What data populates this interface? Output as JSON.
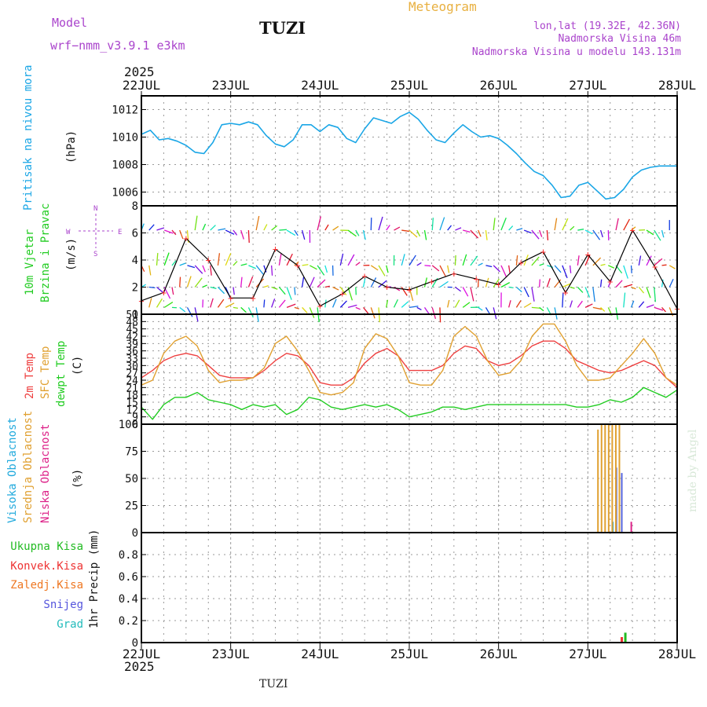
{
  "header": {
    "model_label": "Model",
    "model_name": "wrf−nmm_v3.9.1  e3km",
    "station": "TUZI",
    "meteogram_label": "Meteogram",
    "lonlat": "lon,lat (19.32E, 42.36N)",
    "elevation": "Nadmorska Visina 46m",
    "model_elevation": "Nadmorska Visina u modelu 143.131m"
  },
  "footer": {
    "station": "TUZI",
    "credit": "made by Angel"
  },
  "colors": {
    "pressure": "#1aa6e6",
    "wind_label": "#22cc22",
    "speed_red": "#ff3030",
    "temp2m": "#ee4040",
    "sfc": "#e0a030",
    "dewpt": "#22cc22",
    "high_cloud": "#22aadd",
    "mid_cloud": "#e0a030",
    "low_cloud": "#dd2288",
    "total_precip": "#22bb22",
    "conv_precip": "#ee3333",
    "frozen_precip": "#ee7722",
    "snow": "#5555dd",
    "graupel": "#22bbbb",
    "compass": "#aa44cc",
    "header_purple": "#aa44cc"
  },
  "chart_data": [
    {
      "type": "line",
      "panel": "pressure",
      "ylabel_lines": [
        "Pritisak na nivou mora",
        "(hPa)"
      ],
      "ylim": [
        1005,
        1013
      ],
      "yticks": [
        1006,
        1008,
        1010,
        1012
      ],
      "x_days": [
        0,
        0.1,
        0.2,
        0.3,
        0.4,
        0.5,
        0.6,
        0.7,
        0.8,
        0.9,
        1,
        1.1,
        1.2,
        1.3,
        1.4,
        1.5,
        1.6,
        1.7,
        1.8,
        1.9,
        2,
        2.1,
        2.2,
        2.3,
        2.4,
        2.5,
        2.6,
        2.7,
        2.8,
        2.9,
        3,
        3.1,
        3.2,
        3.3,
        3.4,
        3.5,
        3.6,
        3.7,
        3.8,
        3.9,
        4,
        4.1,
        4.2,
        4.3,
        4.4,
        4.5,
        4.6,
        4.7,
        4.8,
        4.9,
        5,
        5.1,
        5.2,
        5.3,
        5.4,
        5.5,
        5.6,
        5.7,
        5.8,
        5.9,
        6
      ],
      "values": [
        1010.2,
        1010.5,
        1009.8,
        1009.9,
        1009.7,
        1009.4,
        1008.9,
        1008.8,
        1009.6,
        1010.9,
        1011.0,
        1010.9,
        1011.1,
        1010.9,
        1010.1,
        1009.5,
        1009.3,
        1009.8,
        1010.9,
        1010.9,
        1010.4,
        1010.9,
        1010.7,
        1009.9,
        1009.6,
        1010.6,
        1011.4,
        1011.2,
        1011.0,
        1011.5,
        1011.8,
        1011.3,
        1010.5,
        1009.8,
        1009.6,
        1010.3,
        1010.9,
        1010.4,
        1010.0,
        1010.1,
        1009.9,
        1009.4,
        1008.8,
        1008.1,
        1007.5,
        1007.2,
        1006.5,
        1005.6,
        1005.7,
        1006.5,
        1006.7,
        1006.1,
        1005.5,
        1005.6,
        1006.2,
        1007.1,
        1007.6,
        1007.8,
        1007.9,
        1007.9,
        1007.9
      ]
    },
    {
      "type": "line",
      "panel": "wind",
      "ylabel_lines": [
        "10m Vjetar",
        "Brzina i Pravac",
        "(m/s)"
      ],
      "compass_labels": [
        "W",
        "E",
        "N",
        "S"
      ],
      "ylim": [
        0,
        8
      ],
      "yticks": [
        0,
        2,
        4,
        6,
        8
      ],
      "x_days": [
        0,
        0.25,
        0.5,
        0.75,
        1,
        1.25,
        1.5,
        1.75,
        2,
        2.25,
        2.5,
        2.75,
        3,
        3.25,
        3.5,
        3.75,
        4,
        4.25,
        4.5,
        4.75,
        5,
        5.25,
        5.5,
        5.75,
        6
      ],
      "values": [
        1.0,
        1.6,
        5.6,
        4.0,
        1.2,
        1.2,
        4.8,
        3.6,
        0.6,
        1.5,
        2.8,
        2.0,
        1.8,
        2.4,
        3.0,
        2.6,
        2.2,
        3.8,
        4.6,
        1.6,
        4.4,
        2.4,
        6.2,
        3.5,
        0.4
      ],
      "arrow_rows": [
        {
          "level": 0.5,
          "label": "row1"
        },
        {
          "level": 2.0,
          "label": "row2"
        },
        {
          "level": 3.6,
          "label": "row3"
        },
        {
          "level": 6.2,
          "label": "row4"
        }
      ]
    },
    {
      "type": "line",
      "panel": "temperature",
      "ylabel_lines": [
        "2m Temp",
        "SFC Temp",
        "dewpt Temp",
        "(C)"
      ],
      "ylim": [
        6,
        51
      ],
      "yticks": [
        6,
        9,
        12,
        15,
        18,
        21,
        24,
        27,
        30,
        33,
        36,
        39,
        42,
        45,
        48,
        51
      ],
      "x_days": [
        0,
        0.125,
        0.25,
        0.375,
        0.5,
        0.625,
        0.75,
        0.875,
        1,
        1.125,
        1.25,
        1.375,
        1.5,
        1.625,
        1.75,
        1.875,
        2,
        2.125,
        2.25,
        2.375,
        2.5,
        2.625,
        2.75,
        2.875,
        3,
        3.125,
        3.25,
        3.375,
        3.5,
        3.625,
        3.75,
        3.875,
        4,
        4.125,
        4.25,
        4.375,
        4.5,
        4.625,
        4.75,
        4.875,
        5,
        5.125,
        5.25,
        5.375,
        5.5,
        5.625,
        5.75,
        5.875,
        6
      ],
      "series": [
        {
          "name": "2m Temp",
          "values": [
            25,
            28,
            32,
            34,
            35,
            34,
            30,
            26,
            25,
            25,
            25,
            28,
            32,
            35,
            34,
            30,
            23,
            22,
            22,
            25,
            31,
            35,
            37,
            34,
            28,
            28,
            28,
            30,
            35,
            38,
            37,
            32,
            30,
            31,
            34,
            38,
            40,
            40,
            37,
            32,
            30,
            28,
            27,
            28,
            30,
            32,
            30,
            25,
            21
          ]
        },
        {
          "name": "SFC Temp",
          "values": [
            22,
            24,
            35,
            40,
            42,
            38,
            28,
            23,
            24,
            24,
            25,
            29,
            39,
            42,
            36,
            28,
            19,
            18,
            19,
            23,
            37,
            43,
            41,
            34,
            23,
            22,
            22,
            28,
            42,
            46,
            42,
            32,
            26,
            27,
            32,
            42,
            47,
            47,
            40,
            30,
            24,
            24,
            25,
            30,
            35,
            41,
            35,
            25,
            22
          ]
        },
        {
          "name": "dewpt Temp",
          "values": [
            13,
            8,
            14,
            17,
            17,
            19,
            16,
            15,
            14,
            12,
            14,
            13,
            14,
            10,
            12,
            17,
            16,
            13,
            12,
            13,
            14,
            13,
            14,
            12,
            9,
            10,
            11,
            13,
            13,
            12,
            13,
            14,
            14,
            14,
            14,
            14,
            14,
            14,
            14,
            13,
            13,
            14,
            16,
            15,
            17,
            21,
            19,
            17,
            20
          ]
        }
      ]
    },
    {
      "type": "bar",
      "panel": "clouds",
      "ylabel_lines": [
        "Visoka Oblacnost",
        "Srednja Oblacnost",
        "Niska Oblacnost",
        "(%)"
      ],
      "ylim": [
        0,
        100
      ],
      "yticks": [
        0,
        25,
        50,
        75,
        100
      ],
      "series": [
        {
          "name": "Visoka Oblacnost",
          "x_days": [
            5.28,
            5.32,
            5.38
          ],
          "values": [
            10,
            60,
            55
          ]
        },
        {
          "name": "Srednja Oblacnost",
          "x_days": [
            5.1,
            5.14,
            5.18,
            5.22,
            5.26,
            5.3,
            5.34
          ],
          "values": [
            95,
            100,
            100,
            100,
            100,
            100,
            100
          ]
        },
        {
          "name": "Niska Oblacnost",
          "x_days": [
            5.46
          ],
          "values": [
            10
          ]
        }
      ]
    },
    {
      "type": "bar",
      "panel": "precipitation",
      "ylabel_lines": [
        "1hr Precip (mm)"
      ],
      "legend": [
        "Ukupna Kisa",
        "Konvek.Kisa",
        "Zaledj.Kisa",
        "Snijeg",
        "Grad"
      ],
      "ylim": [
        0,
        1.0
      ],
      "yticks": [
        0,
        0.2,
        0.4,
        0.6,
        0.8
      ],
      "series": [
        {
          "name": "Ukupna Kisa",
          "x_days": [
            5.42
          ],
          "values": [
            0.09
          ]
        },
        {
          "name": "Konvek.Kisa",
          "x_days": [
            5.38
          ],
          "values": [
            0.05
          ]
        }
      ]
    }
  ],
  "x_axis": {
    "year": "2025",
    "days": [
      "22JUL",
      "23JUL",
      "24JUL",
      "25JUL",
      "26JUL",
      "27JUL",
      "28JUL"
    ]
  }
}
